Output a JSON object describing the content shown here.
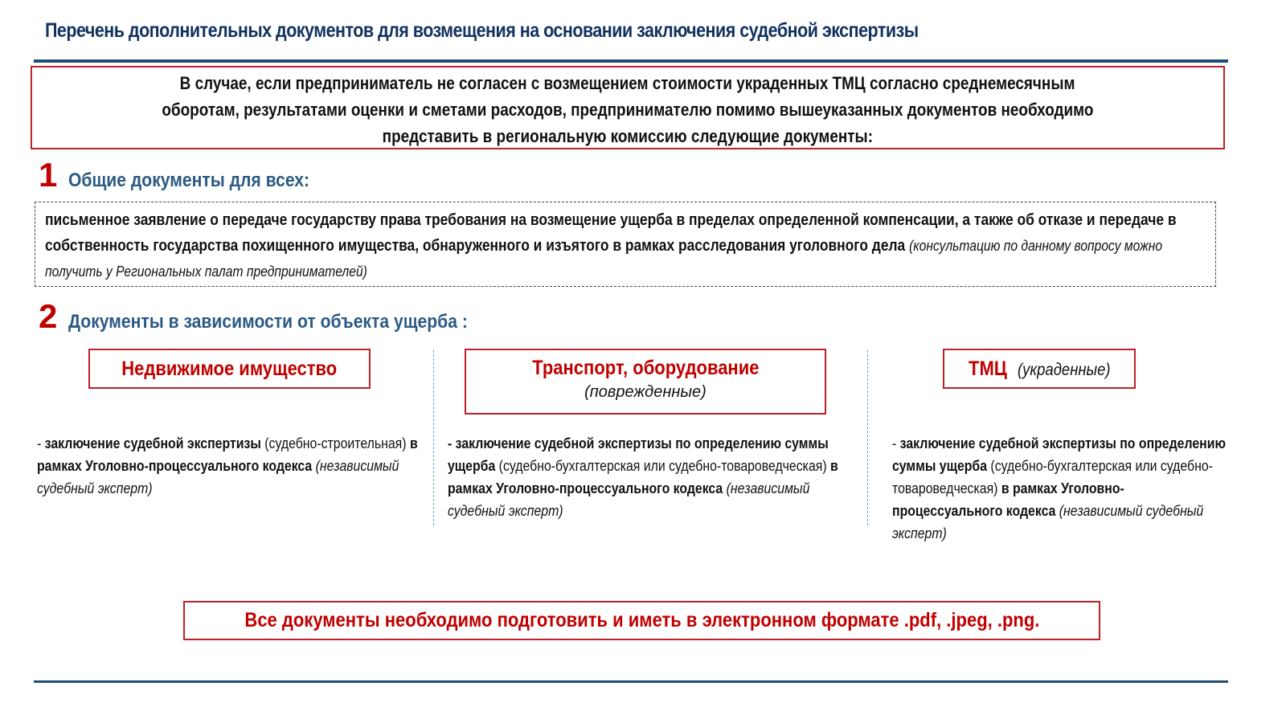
{
  "title": "Перечень дополнительных документов для возмещения на основании заключения судебной экспертизы",
  "intro": {
    "lines": [
      "В случае, если предприниматель не согласен с возмещением стоимости украденных ТМЦ согласно среднемесячным",
      "оборотам, результатами оценки и сметами расходов, предпринимателю помимо вышеуказанных документов необходимо",
      "представить в региональную комиссию следующие документы:"
    ]
  },
  "section1": {
    "number": "1",
    "label": "Общие документы для всех:",
    "text_bold": "письменное заявление о передаче государству права требования на возмещение ущерба в пределах определенной компенсации, а также об отказе и передаче в собственность государства похищенного имущества, обнаруженного и изъятого в рамках расследования уголовного дела",
    "text_note": "(консультацию по данному вопросу можно получить у Региональных палат предпринимателей)"
  },
  "section2": {
    "number": "2",
    "label": "Документы в зависимости от объекта ущерба :",
    "categories": [
      {
        "title": "Недвижимое имущество",
        "subtitle": "",
        "segments": [
          {
            "t": "- ",
            "s": "n"
          },
          {
            "t": "заключение судебной экспертизы",
            "s": "b"
          },
          {
            "t": " (судебно-строительная) ",
            "s": "n"
          },
          {
            "t": "в рамках Уголовно-процессуального кодекса",
            "s": "b"
          },
          {
            "t": " (независимый судебный эксперт)",
            "s": "i"
          }
        ]
      },
      {
        "title": "Транспорт, оборудование",
        "subtitle": "(поврежденные)",
        "segments": [
          {
            "t": "- заключение судебной экспертизы по определению суммы ущерба",
            "s": "b"
          },
          {
            "t": " (судебно-бухгалтерская или судебно-товароведческая) ",
            "s": "n"
          },
          {
            "t": "в рамках Уголовно-процессуального кодекса",
            "s": "b"
          },
          {
            "t": " (независимый судебный эксперт)",
            "s": "i"
          }
        ]
      },
      {
        "title": "ТМЦ",
        "subtitle": "(украденные)",
        "segments": [
          {
            "t": "- ",
            "s": "n"
          },
          {
            "t": "заключение судебной экспертизы по определению суммы ущерба",
            "s": "b"
          },
          {
            "t": " (судебно-бухгалтерская или судебно-товароведческая) ",
            "s": "n"
          },
          {
            "t": "в рамках Уголовно-процессуального кодекса",
            "s": "b"
          },
          {
            "t": " (независимый судебный эксперт)",
            "s": "i"
          }
        ]
      }
    ]
  },
  "footer": "Все документы необходимо подготовить и иметь в электронном формате .pdf, .jpeg, .png.",
  "colors": {
    "title": "#12325f",
    "accent_red": "#c00000",
    "section_label": "#2b5a84",
    "rule": "#1f4e79"
  }
}
